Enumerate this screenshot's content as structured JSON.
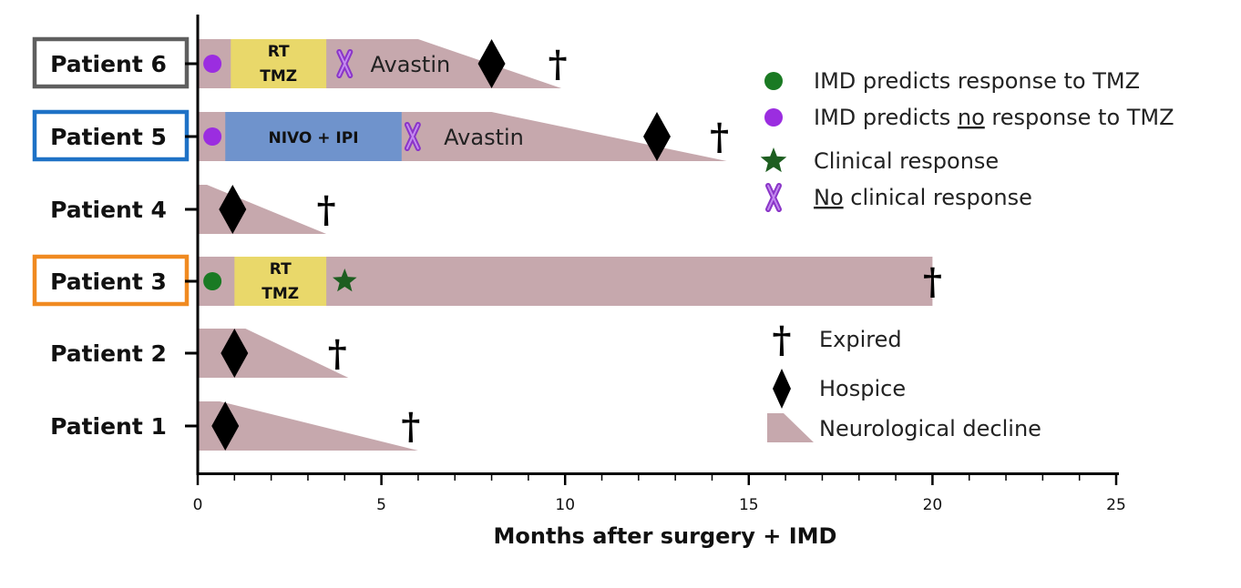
{
  "chart_data": {
    "type": "swimmer",
    "title": "",
    "xlabel": "Months after surgery + IMD",
    "ylabel": "",
    "xlim": [
      0,
      25
    ],
    "xticks": [
      0,
      5,
      10,
      15,
      20,
      25
    ],
    "colors": {
      "decline": "#c6a8ad",
      "rt_tmz": "#e9d86a",
      "nivo_ipi": "#6f93cc",
      "imd_response": "#1a7a23",
      "imd_no_response": "#9b2de0",
      "clinical_response": "#1d5e20",
      "no_clinical_response": "#8a35c8",
      "hospice": "#000000",
      "expired": "#000000",
      "box_patient6": "#5f5f5f",
      "box_patient5": "#1f72c6",
      "box_patient3": "#f08a21"
    },
    "patients": [
      {
        "label": "Patient 6",
        "boxed": "box_patient6",
        "decline_full_until": 6.0,
        "decline_end": 9.9,
        "imd": "no_response",
        "imd_x": 0.4,
        "treatments": [
          {
            "kind": "rt_tmz",
            "lines": [
              "RT",
              "TMZ"
            ],
            "start": 0.9,
            "end": 3.5
          }
        ],
        "no_response_x": 4.0,
        "avastin": {
          "text": "Avastin",
          "x": 4.7
        },
        "hospice": 8.0,
        "expired": 9.8
      },
      {
        "label": "Patient 5",
        "boxed": "box_patient5",
        "decline_full_until": 8.0,
        "decline_end": 14.4,
        "imd": "no_response",
        "imd_x": 0.4,
        "treatments": [
          {
            "kind": "nivo_ipi",
            "lines": [
              "NIVO + IPI"
            ],
            "start": 0.75,
            "end": 5.55
          }
        ],
        "no_response_x": 5.85,
        "avastin": {
          "text": "Avastin",
          "x": 6.7
        },
        "hospice": 12.5,
        "expired": 14.2
      },
      {
        "label": "Patient 4",
        "boxed": "",
        "decline_full_until": 0.25,
        "decline_end": 3.5,
        "hospice": 0.95,
        "expired": 3.5
      },
      {
        "label": "Patient 3",
        "boxed": "box_patient3",
        "decline_full_until": 20.0,
        "decline_end": 20.0,
        "imd": "response",
        "imd_x": 0.4,
        "treatments": [
          {
            "kind": "rt_tmz",
            "lines": [
              "RT",
              "TMZ"
            ],
            "start": 1.0,
            "end": 3.5
          }
        ],
        "clinical_response_x": 4.0,
        "expired": 20.0
      },
      {
        "label": "Patient 2",
        "boxed": "",
        "decline_full_until": 1.3,
        "decline_end": 4.1,
        "hospice": 1.0,
        "expired": 3.8
      },
      {
        "label": "Patient 1",
        "boxed": "",
        "decline_full_until": 0.6,
        "decline_end": 6.0,
        "hospice": 0.75,
        "expired": 5.8
      }
    ],
    "legend": [
      {
        "symbol": "circle",
        "color": "imd_response",
        "text": "IMD predicts response to TMZ"
      },
      {
        "symbol": "circle",
        "color": "imd_no_response",
        "text_before": "IMD predicts ",
        "text_underlined": "no",
        "text_after": " response to TMZ"
      },
      {
        "symbol": "star",
        "color": "clinical_response",
        "text": "Clinical response"
      },
      {
        "symbol": "x",
        "color": "no_clinical_response",
        "text_underlined": "No",
        "text_after": " clinical response"
      },
      {
        "symbol": "dagger",
        "color": "expired",
        "text": "Expired"
      },
      {
        "symbol": "diamond",
        "color": "hospice",
        "text": "Hospice"
      },
      {
        "symbol": "wedge",
        "color": "decline",
        "text": "Neurological decline"
      }
    ]
  }
}
